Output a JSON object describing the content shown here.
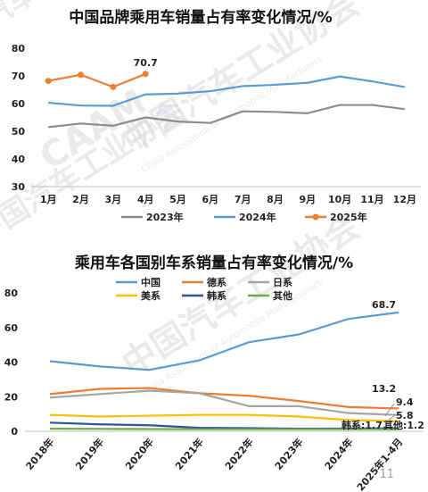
{
  "page_number": "11",
  "watermark": {
    "org_cn": "中国汽车工业协会",
    "org_en": "China Association of Automobile Manufacturers",
    "logo_text": "CAAM"
  },
  "chart_data": [
    {
      "type": "line",
      "title": "中国品牌乘用车销量占有率变化情况/%",
      "categories": [
        "1月",
        "2月",
        "3月",
        "4月",
        "5月",
        "6月",
        "7月",
        "8月",
        "9月",
        "10月",
        "11月",
        "12月"
      ],
      "ylim": [
        30,
        80
      ],
      "yticks": [
        30,
        40,
        50,
        60,
        70,
        80
      ],
      "grid": false,
      "legend": "bottom",
      "series": [
        {
          "name": "2023年",
          "color": "#8c8c8c",
          "values": [
            51.5,
            52.8,
            52.0,
            55.0,
            53.5,
            53.0,
            57.2,
            57.0,
            56.5,
            59.5,
            59.5,
            58.0
          ]
        },
        {
          "name": "2024年",
          "color": "#5b9bd5",
          "values": [
            60.3,
            59.3,
            59.2,
            63.3,
            63.6,
            64.5,
            66.3,
            66.8,
            67.5,
            69.8,
            68.0,
            66.0
          ]
        },
        {
          "name": "2025年",
          "color": "#ed7d31",
          "marker": "circle",
          "values": [
            68.2,
            70.4,
            66.0,
            70.7,
            null,
            null,
            null,
            null,
            null,
            null,
            null,
            null
          ]
        }
      ],
      "annotations": [
        {
          "text": "70.7",
          "x": "4月",
          "y": 70.7
        }
      ]
    },
    {
      "type": "line",
      "title": "乘用车各国别车系销量占有率变化情况/%",
      "categories": [
        "2018年",
        "2019年",
        "2020年",
        "2021年",
        "2022年",
        "2023年",
        "2024年",
        "2025年1-4月"
      ],
      "ylim": [
        0,
        80
      ],
      "yticks": [
        0,
        20,
        40,
        60,
        80
      ],
      "grid": false,
      "legend": "top-left",
      "series": [
        {
          "name": "中国",
          "color": "#5b9bd5",
          "values": [
            40.5,
            37.5,
            35.5,
            41.0,
            51.5,
            56.0,
            65.0,
            68.7
          ]
        },
        {
          "name": "德系",
          "color": "#ed7d31",
          "values": [
            21.5,
            24.5,
            25.0,
            22.0,
            20.5,
            17.5,
            14.0,
            13.2
          ]
        },
        {
          "name": "日系",
          "color": "#a5a5a5",
          "values": [
            19.5,
            21.5,
            23.5,
            22.0,
            14.5,
            14.5,
            10.5,
            9.4
          ]
        },
        {
          "name": "美系",
          "color": "#ffc000",
          "values": [
            9.5,
            8.5,
            9.0,
            9.5,
            9.5,
            8.5,
            6.5,
            5.8
          ]
        },
        {
          "name": "韩系",
          "color": "#2e5597",
          "values": [
            5.0,
            4.0,
            3.5,
            2.0,
            1.8,
            1.5,
            1.6,
            1.7
          ]
        },
        {
          "name": "其他",
          "color": "#70ad47",
          "values": [
            1.5,
            1.4,
            1.3,
            1.2,
            1.2,
            1.2,
            1.2,
            1.2
          ]
        }
      ],
      "annotations": [
        {
          "text": "68.7"
        },
        {
          "text": "13.2"
        },
        {
          "text": "9.4"
        },
        {
          "text": "5.8"
        },
        {
          "text": "韩系:1.7"
        },
        {
          "text": "其他:1.2"
        }
      ]
    }
  ]
}
